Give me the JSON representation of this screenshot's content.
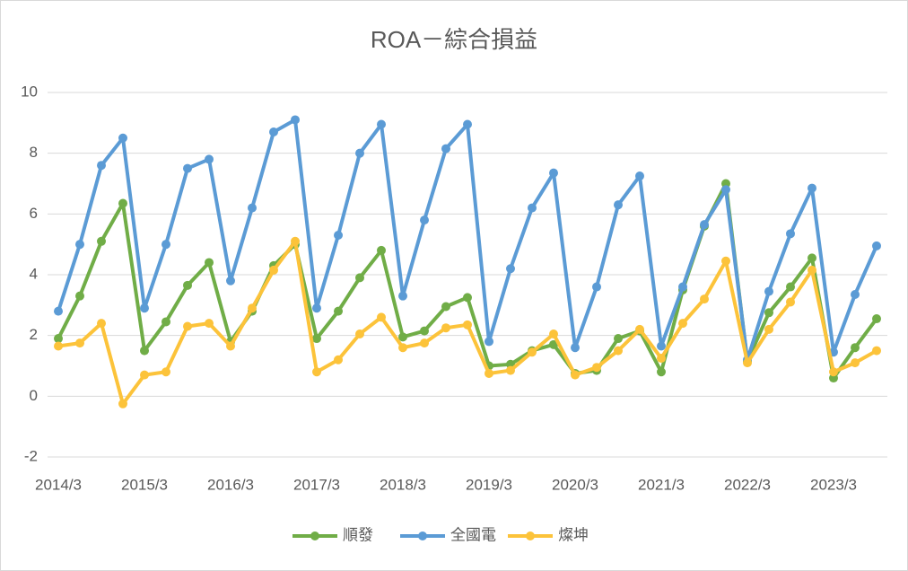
{
  "chart_data": {
    "type": "line",
    "title": "ROA－綜合損益",
    "categories": [
      "2014/3",
      null,
      null,
      null,
      "2015/3",
      null,
      null,
      null,
      "2016/3",
      null,
      null,
      null,
      "2017/3",
      null,
      null,
      null,
      "2018/3",
      null,
      null,
      null,
      "2019/3",
      null,
      null,
      null,
      "2020/3",
      null,
      null,
      null,
      "2021/3",
      null,
      null,
      null,
      "2022/3",
      null,
      null,
      null,
      "2023/3",
      null,
      null
    ],
    "series": [
      {
        "name": "順發",
        "color": "#70ad47",
        "values": [
          1.9,
          3.3,
          5.1,
          6.35,
          1.5,
          2.45,
          3.65,
          4.4,
          1.8,
          2.8,
          4.3,
          5.0,
          1.9,
          2.8,
          3.9,
          4.8,
          1.95,
          2.15,
          2.95,
          3.25,
          1.0,
          1.05,
          1.5,
          1.7,
          0.75,
          0.85,
          1.9,
          2.15,
          0.8,
          3.5,
          5.6,
          7.0,
          1.15,
          2.75,
          3.6,
          4.55,
          0.6,
          1.6,
          2.55
        ]
      },
      {
        "name": "全國電",
        "color": "#5b9bd5",
        "values": [
          2.8,
          5.0,
          7.6,
          8.5,
          2.9,
          5.0,
          7.5,
          7.8,
          3.8,
          6.2,
          8.7,
          9.1,
          2.9,
          5.3,
          8.0,
          8.95,
          3.3,
          5.8,
          8.15,
          8.95,
          1.8,
          4.2,
          6.2,
          7.35,
          1.6,
          3.6,
          6.3,
          7.25,
          1.65,
          3.6,
          5.65,
          6.8,
          1.2,
          3.45,
          5.35,
          6.85,
          1.45,
          3.35,
          4.95
        ]
      },
      {
        "name": "燦坤",
        "color": "#fcc33a",
        "values": [
          1.65,
          1.75,
          2.4,
          -0.25,
          0.7,
          0.8,
          2.3,
          2.4,
          1.65,
          2.9,
          4.15,
          5.1,
          0.8,
          1.2,
          2.05,
          2.6,
          1.6,
          1.75,
          2.25,
          2.35,
          0.75,
          0.85,
          1.45,
          2.05,
          0.7,
          0.95,
          1.5,
          2.2,
          1.25,
          2.4,
          3.2,
          4.45,
          1.1,
          2.2,
          3.1,
          4.15,
          0.8,
          1.1,
          1.5
        ]
      }
    ],
    "ylim": [
      -2,
      10
    ],
    "yticks": [
      -2,
      0,
      2,
      4,
      6,
      8,
      10
    ],
    "grid": true,
    "legend": "bottom"
  }
}
